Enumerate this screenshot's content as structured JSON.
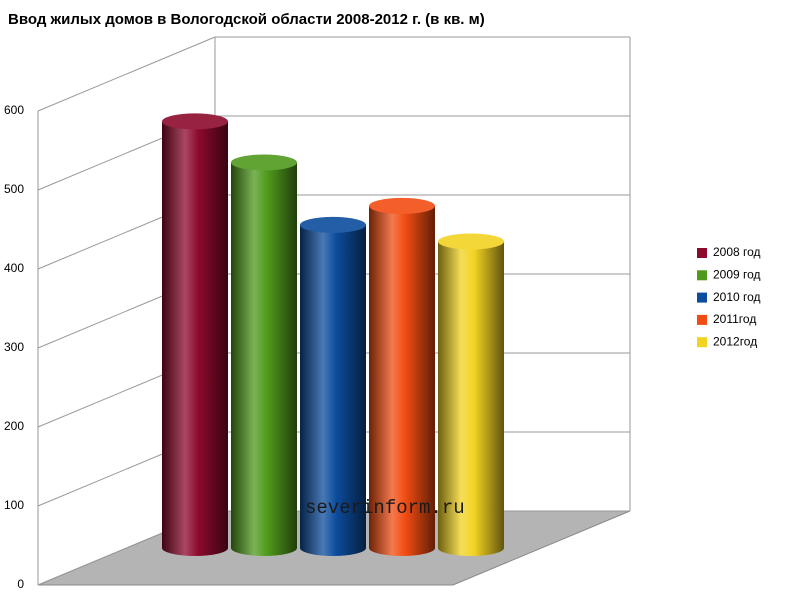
{
  "chart_data": {
    "type": "bar3d",
    "title": "Ввод жилых домов в Вологодской области 2008-2012 г.  (в кв. м)",
    "annotation": "severinform.ru",
    "series": [
      {
        "name": "2008 год",
        "color": "#8c0a2c",
        "values": [
          540
        ]
      },
      {
        "name": "2009 год",
        "color": "#4f9a1c",
        "values": [
          488
        ]
      },
      {
        "name": "2010 год",
        "color": "#0c4c9c",
        "values": [
          409
        ]
      },
      {
        "name": "2011год",
        "color": "#f24c12",
        "values": [
          433
        ]
      },
      {
        "name": "2012год",
        "color": "#f2d322",
        "values": [
          388
        ]
      }
    ],
    "ylim": [
      0,
      600
    ],
    "yticks": [
      0,
      100,
      200,
      300,
      400,
      500,
      600
    ],
    "grid": true,
    "legend": "right"
  }
}
